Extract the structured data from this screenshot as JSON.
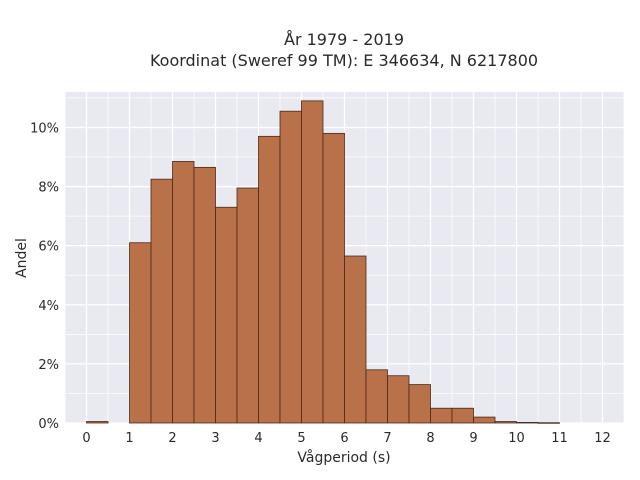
{
  "chart_data": {
    "type": "bar",
    "title_lines": [
      "År 1979 - 2019",
      "Koordinat (Sweref 99 TM): E 346634, N 6217800"
    ],
    "xlabel": "Vågperiod (s)",
    "ylabel": "Andel",
    "xlim": [
      -0.5,
      12.5
    ],
    "ylim": [
      0,
      11.2
    ],
    "x_ticks": [
      0,
      1,
      2,
      3,
      4,
      5,
      6,
      7,
      8,
      9,
      10,
      11,
      12
    ],
    "y_ticks": [
      0,
      2,
      4,
      6,
      8,
      10
    ],
    "y_tick_labels": [
      "0%",
      "2%",
      "4%",
      "6%",
      "8%",
      "10%"
    ],
    "bin_width": 0.5,
    "bins": [
      {
        "start": 0.0,
        "value": 0.05
      },
      {
        "start": 1.0,
        "value": 6.1
      },
      {
        "start": 1.5,
        "value": 8.25
      },
      {
        "start": 2.0,
        "value": 8.85
      },
      {
        "start": 2.5,
        "value": 8.65
      },
      {
        "start": 3.0,
        "value": 7.3
      },
      {
        "start": 3.5,
        "value": 7.95
      },
      {
        "start": 4.0,
        "value": 9.7
      },
      {
        "start": 4.5,
        "value": 10.55
      },
      {
        "start": 5.0,
        "value": 10.9
      },
      {
        "start": 5.5,
        "value": 9.8
      },
      {
        "start": 6.0,
        "value": 5.65
      },
      {
        "start": 6.5,
        "value": 1.8
      },
      {
        "start": 7.0,
        "value": 1.6
      },
      {
        "start": 7.5,
        "value": 1.3
      },
      {
        "start": 8.0,
        "value": 0.5
      },
      {
        "start": 8.5,
        "value": 0.5
      },
      {
        "start": 9.0,
        "value": 0.2
      },
      {
        "start": 9.5,
        "value": 0.05
      },
      {
        "start": 10.0,
        "value": 0.02
      },
      {
        "start": 10.5,
        "value": 0.01
      }
    ],
    "grid": true,
    "colors": {
      "bar_fill": "#b9714a",
      "bar_stroke": "#4a2a18",
      "plot_background": "#e9e9f1",
      "grid": "#ffffff"
    }
  }
}
